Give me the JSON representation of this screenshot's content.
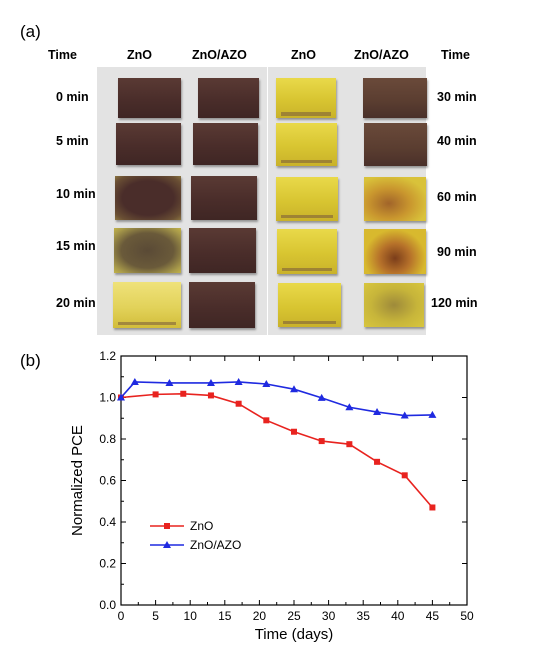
{
  "panel_a": {
    "label": "(a)",
    "headers": {
      "time_left": "Time",
      "zno_left": "ZnO",
      "znoazo_left": "ZnO/AZO",
      "zno_right": "ZnO",
      "znoazo_right": "ZnO/AZO",
      "time_right": "Time"
    },
    "left_rows": [
      "0 min",
      "5 min",
      "10 min",
      "15 min",
      "20 min"
    ],
    "right_rows": [
      "30 min",
      "40 min",
      "60 min",
      "90 min",
      "120 min"
    ]
  },
  "panel_b": {
    "label": "(b)"
  },
  "chart_data": {
    "type": "line",
    "xlabel": "Time (days)",
    "ylabel": "Normalized PCE",
    "xlim": [
      0,
      50
    ],
    "ylim": [
      0.0,
      1.2
    ],
    "xticks": [
      "0",
      "5",
      "10",
      "15",
      "20",
      "25",
      "30",
      "35",
      "40",
      "45",
      "50"
    ],
    "yticks": [
      "0.0",
      "0.2",
      "0.4",
      "0.6",
      "0.8",
      "1.0",
      "1.2"
    ],
    "grid": false,
    "legend_position": "lower-left",
    "series": [
      {
        "name": "ZnO",
        "color": "#e8231f",
        "marker": "square",
        "x": [
          0,
          5,
          9,
          13,
          17,
          21,
          25,
          29,
          33,
          37,
          41,
          45
        ],
        "y": [
          1.0,
          1.015,
          1.018,
          1.01,
          0.97,
          0.89,
          0.835,
          0.79,
          0.775,
          0.69,
          0.625,
          0.47
        ]
      },
      {
        "name": "ZnO/AZO",
        "color": "#1f2ae0",
        "marker": "triangle",
        "x": [
          0,
          2,
          7,
          13,
          17,
          21,
          25,
          29,
          33,
          37,
          41,
          45
        ],
        "y": [
          1.0,
          1.075,
          1.07,
          1.07,
          1.075,
          1.065,
          1.04,
          0.998,
          0.953,
          0.93,
          0.913,
          0.916
        ]
      }
    ]
  }
}
